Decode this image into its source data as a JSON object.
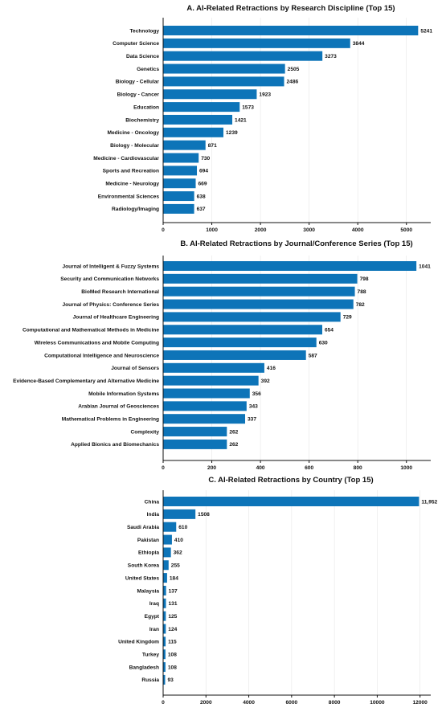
{
  "colors": {
    "bar": "#0d74b8",
    "text": "#111111",
    "grid": "#e6e6e6"
  },
  "chart_data": [
    {
      "type": "bar",
      "orientation": "horizontal",
      "title": "A. AI-Related Retractions by Research Discipline (Top 15)",
      "categories": [
        "Technology",
        "Computer Science",
        "Data Science",
        "Genetics",
        "Biology - Cellular",
        "Biology - Cancer",
        "Education",
        "Biochemistry",
        "Medicine - Oncology",
        "Biology - Molecular",
        "Medicine - Cardiovascular",
        "Sports and Recreation",
        "Medicine - Neurology",
        "Environmental Sciences",
        "Radiology/Imaging"
      ],
      "values": [
        5241,
        3844,
        3273,
        2505,
        2486,
        1923,
        1573,
        1421,
        1239,
        871,
        730,
        694,
        669,
        638,
        637
      ],
      "value_labels": [
        "5241",
        "3844",
        "3273",
        "2505",
        "2486",
        "1923",
        "1573",
        "1421",
        "1239",
        "871",
        "730",
        "694",
        "669",
        "638",
        "637"
      ],
      "xlim": [
        0,
        5500
      ],
      "xticks": [
        0,
        1000,
        2000,
        3000,
        4000,
        5000
      ],
      "xtick_labels": [
        "0",
        "1000",
        "2000",
        "3000",
        "4000",
        "5000"
      ],
      "grid": true
    },
    {
      "type": "bar",
      "orientation": "horizontal",
      "title": "B. AI-Related Retractions by Journal/Conference Series (Top 15)",
      "categories": [
        "Journal of Intelligent & Fuzzy Systems",
        "Security and Communication Networks",
        "BioMed Research International",
        "Journal of Physics: Conference Series",
        "Journal of Healthcare Engineering",
        "Computational and Mathematical Methods in Medicine",
        "Wireless Communications and Mobile Computing",
        "Computational Intelligence and Neuroscience",
        "Journal of Sensors",
        "Evidence-Based Complementary and Alternative Medicine",
        "Mobile Information Systems",
        "Arabian Journal of Geosciences",
        "Mathematical Problems in Engineering",
        "Complexity",
        "Applied Bionics and Biomechanics"
      ],
      "values": [
        1041,
        798,
        788,
        782,
        729,
        654,
        630,
        587,
        416,
        392,
        356,
        343,
        337,
        262,
        262
      ],
      "value_labels": [
        "1041",
        "798",
        "788",
        "782",
        "729",
        "654",
        "630",
        "587",
        "416",
        "392",
        "356",
        "343",
        "337",
        "262",
        "262"
      ],
      "xlim": [
        0,
        1100
      ],
      "xticks": [
        0,
        200,
        400,
        600,
        800,
        1000
      ],
      "xtick_labels": [
        "0",
        "200",
        "400",
        "600",
        "800",
        "1000"
      ],
      "grid": true
    },
    {
      "type": "bar",
      "orientation": "horizontal",
      "title": "C. AI-Related Retractions by Country (Top 15)",
      "categories": [
        "China",
        "India",
        "Saudi Arabia",
        "Pakistan",
        "Ethiopia",
        "South Korea",
        "United States",
        "Malaysia",
        "Iraq",
        "Egypt",
        "Iran",
        "United Kingdom",
        "Turkey",
        "Bangladesh",
        "Russia"
      ],
      "values": [
        11952,
        1508,
        610,
        410,
        362,
        255,
        184,
        137,
        131,
        125,
        124,
        115,
        108,
        108,
        93
      ],
      "value_labels": [
        "11,952",
        "1508",
        "610",
        "410",
        "362",
        "255",
        "184",
        "137",
        "131",
        "125",
        "124",
        "115",
        "108",
        "108",
        "93"
      ],
      "xlim": [
        0,
        12500
      ],
      "xticks": [
        0,
        2000,
        4000,
        6000,
        8000,
        10000,
        12000
      ],
      "xtick_labels": [
        "0",
        "2000",
        "4000",
        "6000",
        "8000",
        "10000",
        "12000"
      ],
      "grid": true
    }
  ]
}
